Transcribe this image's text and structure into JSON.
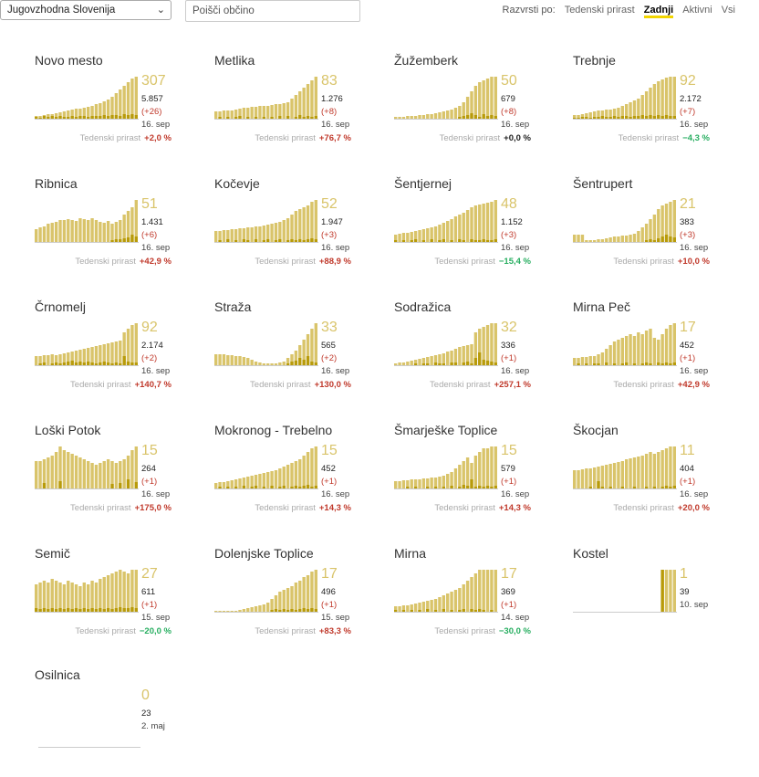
{
  "toolbar": {
    "region": "Jugovzhodna Slovenija",
    "search_placeholder": "Poišči občino",
    "sort_label": "Razvrsti po:",
    "sort_options": [
      "Tedenski prirast",
      "Zadnji",
      "Aktivni",
      "Vsi"
    ],
    "sort_active": "Zadnji"
  },
  "trend_label": "Tedenski prirast",
  "colors": {
    "bar_light": "#d9c46a",
    "bar_dark": "#b89b0a",
    "up": "#c0392b",
    "down": "#27ae60",
    "accent_underline": "#f2d500"
  },
  "municipalities": [
    {
      "name": "Novo mesto",
      "active": "307",
      "total": "5.857",
      "delta": "(+26)",
      "date": "16. sep",
      "trend": "+2,0 %",
      "trend_dir": "up",
      "bars": [
        3,
        3,
        4,
        5,
        5,
        6,
        7,
        8,
        9,
        10,
        11,
        11,
        12,
        13,
        14,
        16,
        17,
        19,
        21,
        24,
        28,
        32,
        36,
        40,
        44,
        46
      ],
      "new": [
        2,
        1,
        3,
        2,
        3,
        2,
        3,
        2,
        2,
        3,
        2,
        3,
        3,
        2,
        3,
        3,
        3,
        4,
        3,
        4,
        4,
        3,
        5,
        4,
        5,
        4
      ]
    },
    {
      "name": "Metlika",
      "active": "83",
      "total": "1.276",
      "delta": "(+8)",
      "date": "16. sep",
      "trend": "+76,7 %",
      "trend_dir": "up",
      "bars": [
        8,
        8,
        9,
        9,
        9,
        10,
        11,
        12,
        12,
        13,
        13,
        14,
        14,
        14,
        15,
        16,
        16,
        17,
        18,
        22,
        26,
        30,
        34,
        38,
        42,
        46
      ],
      "new": [
        0,
        2,
        0,
        2,
        0,
        2,
        3,
        0,
        2,
        0,
        2,
        0,
        2,
        0,
        2,
        0,
        3,
        0,
        3,
        0,
        2,
        4,
        2,
        3,
        2,
        3
      ]
    },
    {
      "name": "Žužemberk",
      "active": "50",
      "total": "679",
      "delta": "(+8)",
      "date": "16. sep",
      "trend": "+0,0 %",
      "trend_dir": "zero",
      "bars": [
        2,
        2,
        2,
        3,
        3,
        3,
        4,
        4,
        5,
        5,
        6,
        7,
        8,
        9,
        10,
        12,
        14,
        18,
        24,
        30,
        36,
        40,
        42,
        44,
        46,
        46
      ],
      "new": [
        0,
        0,
        0,
        0,
        0,
        0,
        0,
        0,
        0,
        0,
        0,
        0,
        0,
        0,
        0,
        0,
        2,
        3,
        4,
        6,
        4,
        2,
        5,
        3,
        4,
        3
      ]
    },
    {
      "name": "Trebnje",
      "active": "92",
      "total": "2.172",
      "delta": "(+7)",
      "date": "16. sep",
      "trend": "−4,3 %",
      "trend_dir": "down",
      "bars": [
        4,
        4,
        5,
        6,
        7,
        8,
        9,
        9,
        10,
        10,
        11,
        12,
        14,
        16,
        18,
        20,
        22,
        26,
        30,
        34,
        38,
        41,
        43,
        45,
        46,
        46
      ],
      "new": [
        1,
        1,
        2,
        2,
        1,
        2,
        2,
        3,
        2,
        2,
        3,
        2,
        3,
        3,
        2,
        3,
        3,
        4,
        3,
        4,
        3,
        4,
        3,
        4,
        3,
        3
      ]
    },
    {
      "name": "Ribnica",
      "active": "51",
      "total": "1.431",
      "delta": "(+6)",
      "date": "16. sep",
      "trend": "+42,9 %",
      "trend_dir": "up",
      "bars": [
        14,
        16,
        17,
        20,
        21,
        22,
        24,
        24,
        25,
        24,
        23,
        26,
        25,
        24,
        26,
        24,
        22,
        21,
        23,
        20,
        22,
        24,
        30,
        34,
        38,
        46
      ],
      "new": [
        0,
        0,
        0,
        0,
        0,
        0,
        0,
        0,
        0,
        0,
        0,
        0,
        0,
        0,
        0,
        0,
        0,
        0,
        0,
        2,
        3,
        3,
        4,
        5,
        8,
        6
      ]
    },
    {
      "name": "Kočevje",
      "active": "52",
      "total": "1.947",
      "delta": "(+3)",
      "date": "16. sep",
      "trend": "+88,9 %",
      "trend_dir": "up",
      "bars": [
        12,
        12,
        13,
        13,
        14,
        14,
        15,
        15,
        16,
        16,
        17,
        17,
        18,
        19,
        20,
        21,
        22,
        24,
        26,
        30,
        34,
        36,
        38,
        40,
        44,
        46
      ],
      "new": [
        0,
        2,
        0,
        3,
        0,
        2,
        0,
        3,
        2,
        0,
        3,
        0,
        2,
        3,
        0,
        2,
        3,
        0,
        2,
        3,
        2,
        3,
        2,
        3,
        4,
        3
      ]
    },
    {
      "name": "Šentjernej",
      "active": "48",
      "total": "1.152",
      "delta": "(+3)",
      "date": "16. sep",
      "trend": "−15,4 %",
      "trend_dir": "down",
      "bars": [
        8,
        9,
        10,
        10,
        11,
        12,
        13,
        14,
        15,
        16,
        17,
        19,
        21,
        23,
        25,
        28,
        30,
        32,
        35,
        38,
        40,
        41,
        42,
        43,
        44,
        46
      ],
      "new": [
        2,
        0,
        2,
        0,
        2,
        3,
        0,
        2,
        0,
        3,
        0,
        2,
        3,
        0,
        2,
        0,
        3,
        2,
        0,
        3,
        2,
        2,
        3,
        2,
        2,
        3
      ]
    },
    {
      "name": "Šentrupert",
      "active": "21",
      "total": "383",
      "delta": "(+3)",
      "date": "16. sep",
      "trend": "+10,0 %",
      "trend_dir": "up",
      "bars": [
        8,
        8,
        8,
        2,
        2,
        2,
        3,
        3,
        4,
        5,
        6,
        6,
        7,
        7,
        8,
        9,
        12,
        16,
        20,
        25,
        30,
        36,
        40,
        42,
        44,
        46
      ],
      "new": [
        0,
        0,
        0,
        0,
        0,
        0,
        0,
        0,
        0,
        0,
        0,
        0,
        0,
        0,
        0,
        0,
        0,
        0,
        2,
        3,
        2,
        4,
        6,
        8,
        6,
        5
      ]
    },
    {
      "name": "Črnomelj",
      "active": "92",
      "total": "2.174",
      "delta": "(+2)",
      "date": "16. sep",
      "trend": "+140,7 %",
      "trend_dir": "up",
      "bars": [
        10,
        10,
        11,
        11,
        12,
        11,
        12,
        13,
        14,
        15,
        16,
        17,
        18,
        19,
        20,
        21,
        22,
        23,
        24,
        25,
        26,
        27,
        36,
        40,
        44,
        46
      ],
      "new": [
        0,
        2,
        3,
        0,
        2,
        3,
        2,
        3,
        4,
        5,
        3,
        4,
        3,
        4,
        3,
        2,
        3,
        4,
        3,
        2,
        3,
        2,
        10,
        4,
        3,
        3
      ]
    },
    {
      "name": "Straža",
      "active": "33",
      "total": "565",
      "delta": "(+2)",
      "date": "16. sep",
      "trend": "+130,0 %",
      "trend_dir": "up",
      "bars": [
        12,
        12,
        12,
        11,
        11,
        10,
        10,
        9,
        8,
        6,
        4,
        3,
        2,
        2,
        2,
        2,
        3,
        4,
        8,
        12,
        16,
        22,
        28,
        34,
        40,
        46
      ],
      "new": [
        0,
        0,
        0,
        0,
        0,
        0,
        0,
        0,
        0,
        0,
        0,
        0,
        0,
        0,
        0,
        0,
        0,
        0,
        2,
        4,
        5,
        8,
        6,
        10,
        4,
        3
      ]
    },
    {
      "name": "Sodražica",
      "active": "32",
      "total": "336",
      "delta": "(+1)",
      "date": "16. sep",
      "trend": "+257,1 %",
      "trend_dir": "up",
      "bars": [
        2,
        3,
        3,
        4,
        5,
        6,
        7,
        8,
        9,
        10,
        11,
        12,
        13,
        15,
        16,
        18,
        20,
        21,
        22,
        23,
        36,
        40,
        42,
        44,
        46,
        46
      ],
      "new": [
        0,
        0,
        0,
        0,
        0,
        2,
        0,
        2,
        2,
        0,
        3,
        2,
        2,
        0,
        3,
        3,
        0,
        3,
        4,
        2,
        8,
        14,
        6,
        5,
        4,
        3
      ]
    },
    {
      "name": "Mirna Peč",
      "active": "17",
      "total": "452",
      "delta": "(+1)",
      "date": "16. sep",
      "trend": "+42,9 %",
      "trend_dir": "up",
      "bars": [
        8,
        8,
        9,
        9,
        10,
        10,
        12,
        14,
        18,
        22,
        26,
        28,
        30,
        32,
        34,
        32,
        36,
        34,
        38,
        40,
        30,
        28,
        34,
        40,
        44,
        46
      ],
      "new": [
        0,
        2,
        0,
        2,
        0,
        2,
        2,
        0,
        3,
        0,
        2,
        0,
        2,
        3,
        0,
        2,
        0,
        2,
        3,
        2,
        0,
        3,
        2,
        3,
        2,
        3
      ]
    },
    {
      "name": "Loški Potok",
      "active": "15",
      "total": "264",
      "delta": "(+1)",
      "date": "16. sep",
      "trend": "+175,0 %",
      "trend_dir": "up",
      "bars": [
        30,
        30,
        32,
        34,
        36,
        40,
        46,
        42,
        40,
        38,
        36,
        34,
        32,
        30,
        28,
        26,
        28,
        30,
        32,
        30,
        28,
        30,
        32,
        36,
        42,
        46
      ],
      "new": [
        0,
        0,
        6,
        0,
        0,
        0,
        8,
        0,
        0,
        0,
        0,
        0,
        0,
        0,
        0,
        0,
        0,
        0,
        0,
        5,
        0,
        6,
        0,
        10,
        0,
        7
      ]
    },
    {
      "name": "Mokronog - Trebelno",
      "active": "15",
      "total": "452",
      "delta": "(+1)",
      "date": "16. sep",
      "trend": "+14,3 %",
      "trend_dir": "up",
      "bars": [
        6,
        7,
        7,
        8,
        9,
        10,
        11,
        12,
        13,
        14,
        15,
        16,
        17,
        18,
        19,
        20,
        22,
        24,
        26,
        28,
        30,
        32,
        36,
        40,
        44,
        46
      ],
      "new": [
        0,
        2,
        0,
        2,
        0,
        2,
        0,
        3,
        0,
        2,
        3,
        0,
        2,
        0,
        3,
        0,
        2,
        3,
        0,
        2,
        3,
        2,
        3,
        4,
        2,
        3
      ]
    },
    {
      "name": "Šmarješke Toplice",
      "active": "15",
      "total": "579",
      "delta": "(+1)",
      "date": "16. sep",
      "trend": "+14,3 %",
      "trend_dir": "up",
      "bars": [
        8,
        8,
        9,
        9,
        10,
        10,
        10,
        11,
        11,
        12,
        12,
        13,
        14,
        16,
        18,
        22,
        26,
        30,
        34,
        28,
        36,
        40,
        44,
        44,
        46,
        46
      ],
      "new": [
        0,
        0,
        0,
        2,
        0,
        2,
        0,
        0,
        2,
        0,
        2,
        0,
        2,
        0,
        3,
        0,
        2,
        4,
        3,
        10,
        2,
        3,
        2,
        3,
        2,
        3
      ]
    },
    {
      "name": "Škocjan",
      "active": "11",
      "total": "404",
      "delta": "(+1)",
      "date": "16. sep",
      "trend": "+20,0 %",
      "trend_dir": "up",
      "bars": [
        20,
        20,
        21,
        22,
        22,
        23,
        24,
        25,
        26,
        27,
        28,
        29,
        30,
        32,
        33,
        34,
        35,
        36,
        38,
        40,
        38,
        40,
        42,
        44,
        46,
        46
      ],
      "new": [
        0,
        0,
        0,
        0,
        2,
        0,
        8,
        2,
        0,
        2,
        0,
        0,
        2,
        0,
        0,
        2,
        0,
        0,
        2,
        0,
        2,
        0,
        2,
        3,
        2,
        3
      ]
    },
    {
      "name": "Semič",
      "active": "27",
      "total": "611",
      "delta": "(+1)",
      "date": "15. sep",
      "trend": "−20,0 %",
      "trend_dir": "down",
      "bars": [
        30,
        32,
        34,
        32,
        36,
        34,
        32,
        30,
        34,
        32,
        30,
        28,
        32,
        30,
        34,
        32,
        36,
        38,
        40,
        42,
        44,
        46,
        44,
        42,
        46,
        46
      ],
      "new": [
        4,
        3,
        4,
        3,
        4,
        3,
        4,
        3,
        4,
        3,
        4,
        3,
        4,
        3,
        4,
        3,
        4,
        3,
        4,
        3,
        4,
        5,
        4,
        4,
        5,
        4
      ]
    },
    {
      "name": "Dolenjske Toplice",
      "active": "17",
      "total": "496",
      "delta": "(+1)",
      "date": "15. sep",
      "trend": "+83,3 %",
      "trend_dir": "up",
      "bars": [
        1,
        1,
        1,
        1,
        1,
        1,
        2,
        3,
        4,
        5,
        6,
        7,
        8,
        10,
        14,
        18,
        22,
        24,
        26,
        28,
        32,
        34,
        38,
        40,
        44,
        46
      ],
      "new": [
        0,
        0,
        0,
        0,
        0,
        0,
        0,
        0,
        0,
        0,
        0,
        0,
        0,
        0,
        2,
        3,
        2,
        3,
        2,
        3,
        2,
        3,
        4,
        3,
        4,
        3
      ]
    },
    {
      "name": "Mirna",
      "active": "17",
      "total": "369",
      "delta": "(+1)",
      "date": "14. sep",
      "trend": "−30,0 %",
      "trend_dir": "down",
      "bars": [
        6,
        6,
        7,
        7,
        8,
        9,
        10,
        11,
        12,
        13,
        14,
        16,
        18,
        20,
        22,
        24,
        26,
        30,
        34,
        38,
        42,
        46,
        46,
        46,
        46,
        46
      ],
      "new": [
        2,
        0,
        2,
        0,
        2,
        0,
        2,
        0,
        3,
        0,
        2,
        0,
        3,
        0,
        2,
        0,
        2,
        3,
        0,
        3,
        2,
        3,
        2,
        0,
        2,
        0
      ]
    },
    {
      "name": "Kostel",
      "active": "1",
      "total": "39",
      "delta": "",
      "date": "10. sep",
      "trend": "",
      "trend_dir": "",
      "bars": [
        0,
        0,
        0,
        0,
        0,
        0,
        0,
        0,
        0,
        0,
        0,
        0,
        0,
        0,
        0,
        0,
        0,
        0,
        0,
        0,
        0,
        0,
        46,
        46,
        46,
        46
      ],
      "new": [
        0,
        0,
        0,
        0,
        0,
        0,
        0,
        0,
        0,
        0,
        0,
        0,
        0,
        0,
        0,
        0,
        0,
        0,
        0,
        0,
        0,
        0,
        46,
        0,
        0,
        0
      ]
    },
    {
      "name": "Osilnica",
      "active": "0",
      "total": "23",
      "delta": "",
      "date": "2. maj",
      "trend": "",
      "trend_dir": "",
      "bars": [],
      "new": []
    }
  ]
}
